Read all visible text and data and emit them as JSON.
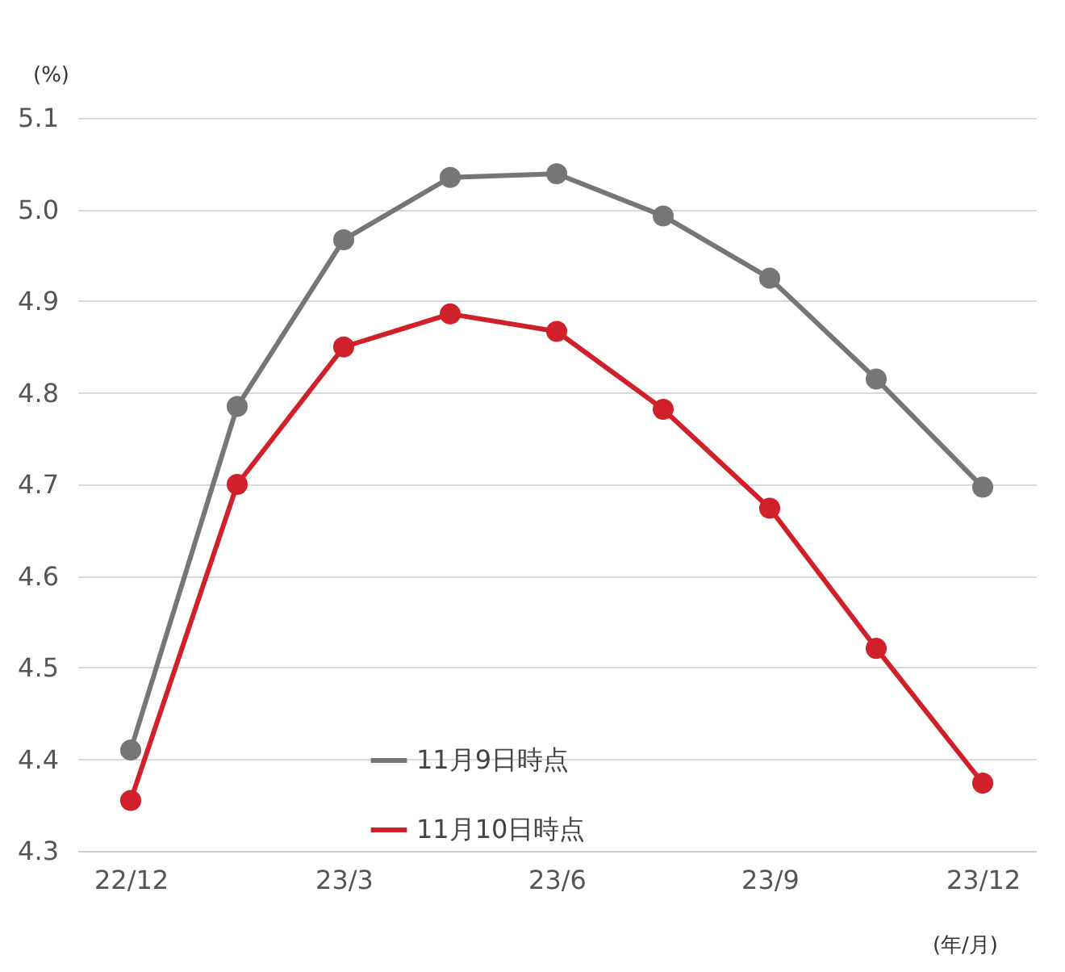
{
  "chart_data": {
    "type": "line",
    "ylabel": "(%)",
    "xlabel": "(年/月)",
    "categories": [
      "22/12",
      null,
      "23/3",
      null,
      "23/6",
      null,
      "23/9",
      null,
      "23/12"
    ],
    "series": [
      {
        "name": "11月9日時点",
        "color": "#767676",
        "values": [
          4.41,
          4.785,
          4.967,
          5.035,
          5.039,
          4.993,
          4.925,
          4.815,
          4.697
        ]
      },
      {
        "name": "11月10日時点",
        "color": "#d0202a",
        "values": [
          4.355,
          4.7,
          4.85,
          4.886,
          4.867,
          4.782,
          4.674,
          4.521,
          4.374
        ]
      }
    ],
    "ylim": [
      4.3,
      5.1
    ],
    "yticks": [
      4.3,
      4.4,
      4.5,
      4.6,
      4.7,
      4.8,
      4.9,
      {
        "value": 5,
        "label": "5.0"
      },
      5.1
    ],
    "grid": "y",
    "legend": "bottom",
    "marker": "circle",
    "line_style": "solid"
  }
}
